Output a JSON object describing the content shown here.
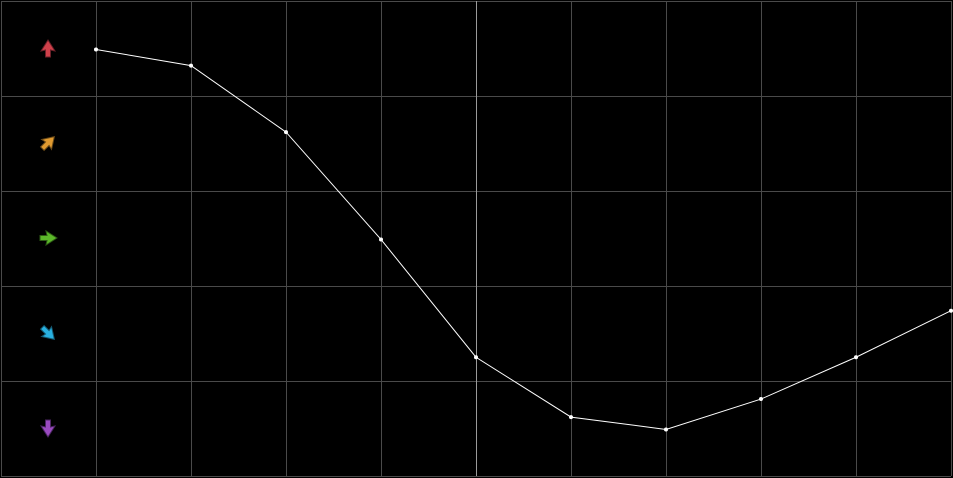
{
  "chart_data": {
    "type": "line",
    "x": [
      1,
      2,
      3,
      4,
      5,
      6,
      7,
      8,
      9,
      10
    ],
    "values": [
      4.49,
      4.32,
      3.62,
      2.49,
      1.25,
      0.62,
      0.49,
      0.81,
      1.25,
      1.74
    ],
    "color": "#ffffff",
    "xlim": [
      0,
      10
    ],
    "xticks": [
      0,
      1,
      2,
      3,
      4,
      5,
      6,
      7,
      8,
      9,
      10
    ],
    "ylim": [
      0,
      5
    ],
    "yticks": [
      0,
      1,
      2,
      3,
      4,
      5
    ],
    "grid": true,
    "grid_color": "#4a4a4a",
    "highlight_x": 5,
    "highlight_color": "#9a9a9a"
  }
}
